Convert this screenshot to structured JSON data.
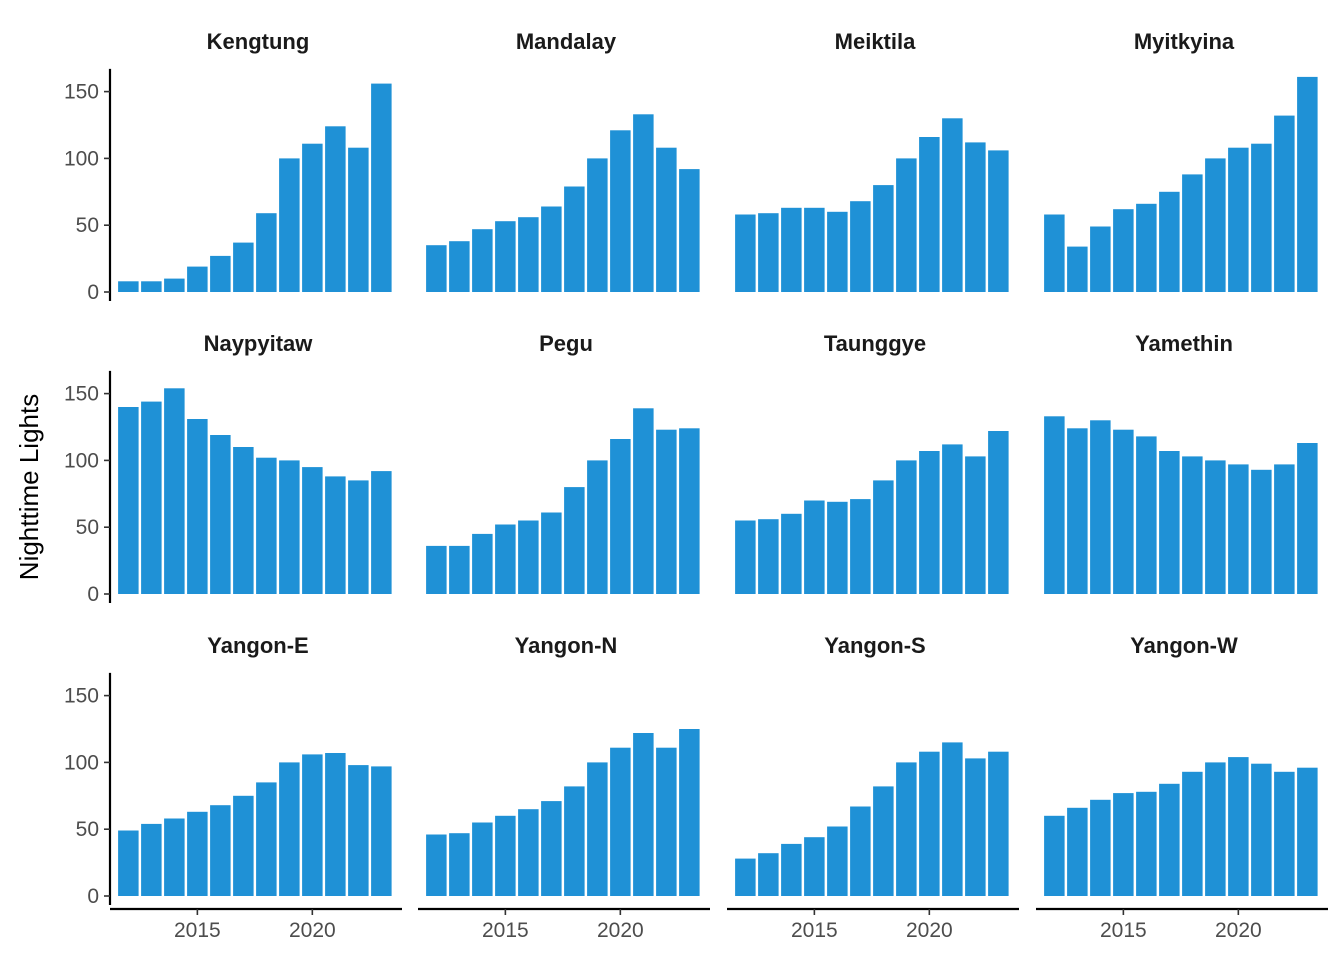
{
  "chart_data": {
    "type": "bar",
    "ylabel": "Nighttime Lights",
    "xlabel": "",
    "ylim": [
      0,
      170
    ],
    "yticks": [
      0,
      50,
      100,
      150
    ],
    "xticks": [
      2015,
      2020
    ],
    "x": [
      2012,
      2013,
      2014,
      2015,
      2016,
      2017,
      2018,
      2019,
      2020,
      2021,
      2022,
      2023
    ],
    "bar_color": "#1f91d6",
    "facets": [
      {
        "name": "Kengtung",
        "values": [
          8,
          8,
          10,
          19,
          27,
          37,
          59,
          100,
          111,
          124,
          108,
          156
        ]
      },
      {
        "name": "Mandalay",
        "values": [
          35,
          38,
          47,
          53,
          56,
          64,
          79,
          100,
          121,
          133,
          108,
          92
        ]
      },
      {
        "name": "Meiktila",
        "values": [
          58,
          59,
          63,
          63,
          60,
          68,
          80,
          100,
          116,
          130,
          112,
          106
        ]
      },
      {
        "name": "Myitkyina",
        "values": [
          58,
          34,
          49,
          62,
          66,
          75,
          88,
          100,
          108,
          111,
          132,
          161
        ]
      },
      {
        "name": "Naypyitaw",
        "values": [
          140,
          144,
          154,
          131,
          119,
          110,
          102,
          100,
          95,
          88,
          85,
          92
        ]
      },
      {
        "name": "Pegu",
        "values": [
          36,
          36,
          45,
          52,
          55,
          61,
          80,
          100,
          116,
          139,
          123,
          124
        ]
      },
      {
        "name": "Taunggye",
        "values": [
          55,
          56,
          60,
          70,
          69,
          71,
          85,
          100,
          107,
          112,
          103,
          122
        ]
      },
      {
        "name": "Yamethin",
        "values": [
          133,
          124,
          130,
          123,
          118,
          107,
          103,
          100,
          97,
          93,
          97,
          113
        ]
      },
      {
        "name": "Yangon-E",
        "values": [
          49,
          54,
          58,
          63,
          68,
          75,
          85,
          100,
          106,
          107,
          98,
          97
        ]
      },
      {
        "name": "Yangon-N",
        "values": [
          46,
          47,
          55,
          60,
          65,
          71,
          82,
          100,
          111,
          122,
          111,
          125
        ]
      },
      {
        "name": "Yangon-S",
        "values": [
          28,
          32,
          39,
          44,
          52,
          67,
          82,
          100,
          108,
          115,
          103,
          108
        ]
      },
      {
        "name": "Yangon-W",
        "values": [
          60,
          66,
          72,
          77,
          78,
          84,
          93,
          100,
          104,
          99,
          93,
          96
        ]
      }
    ]
  }
}
